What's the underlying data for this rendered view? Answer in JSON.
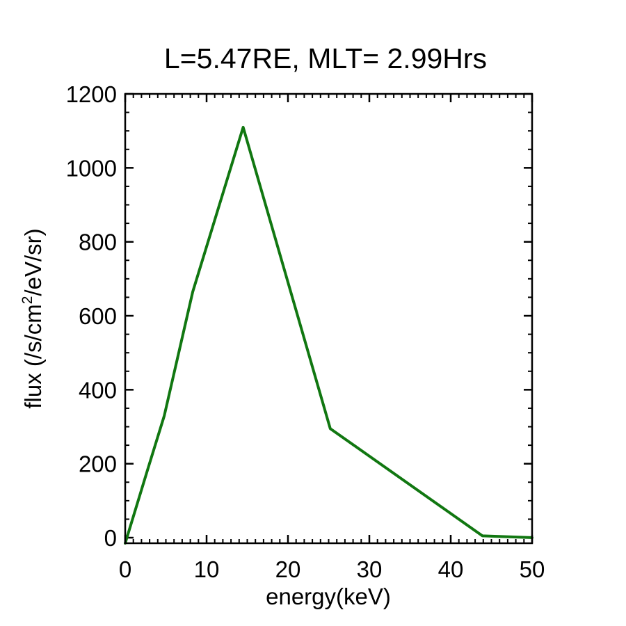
{
  "chart_data": {
    "type": "line",
    "title": "L=5.47RE, MLT= 2.99Hrs",
    "xlabel": "energy(keV)",
    "ylabel": {
      "prefix": "flux (/s/cm",
      "superscript": "2",
      "suffix": "/eV/sr)"
    },
    "xlim": [
      0,
      50
    ],
    "ylim": [
      -15,
      1200
    ],
    "x_ticks": [
      0,
      10,
      20,
      30,
      40,
      50
    ],
    "y_ticks": [
      0,
      200,
      400,
      600,
      800,
      1000,
      1200
    ],
    "x_tick_labels": [
      "0",
      "10",
      "20",
      "30",
      "40",
      "50"
    ],
    "y_tick_labels": [
      "0",
      "200",
      "400",
      "600",
      "800",
      "1000",
      "1200"
    ],
    "x_minor_step": 1,
    "y_minor_step": 50,
    "grid": false,
    "legend": "none",
    "series": [
      {
        "color": "#117711",
        "x": [
          0,
          2.7,
          4.8,
          8.3,
          14.5,
          25.2,
          43.9,
          50
        ],
        "y": [
          -15,
          180,
          330,
          665,
          1110,
          295,
          5,
          0
        ]
      }
    ]
  }
}
